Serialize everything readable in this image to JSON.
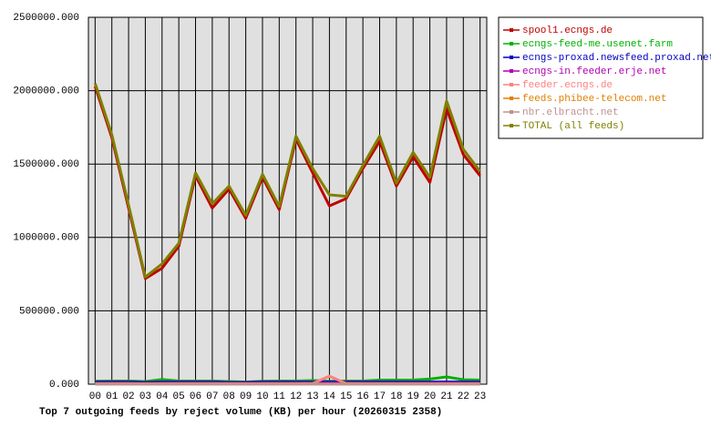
{
  "chart_data": {
    "type": "line",
    "title": "Top 7 outgoing feeds by reject volume (KB) per hour (20260315 2358)",
    "categories": [
      "00",
      "01",
      "02",
      "03",
      "04",
      "05",
      "06",
      "07",
      "08",
      "09",
      "10",
      "11",
      "12",
      "13",
      "14",
      "15",
      "16",
      "17",
      "18",
      "19",
      "20",
      "21",
      "22",
      "23"
    ],
    "ylim": [
      0,
      2500000
    ],
    "yticks": [
      {
        "value": 0,
        "label": "0.000"
      },
      {
        "value": 500000,
        "label": "500000.000"
      },
      {
        "value": 1000000,
        "label": "1000000.000"
      },
      {
        "value": 1500000,
        "label": "1500000.000"
      },
      {
        "value": 2000000,
        "label": "2000000.000"
      },
      {
        "value": 2500000,
        "label": "2500000.000"
      }
    ],
    "grid": true,
    "legend": "right",
    "series": [
      {
        "name": "spool1.ecngs.de",
        "color": "#c00000",
        "values": [
          2030000,
          1680000,
          1200000,
          720000,
          790000,
          940000,
          1420000,
          1200000,
          1330000,
          1130000,
          1410000,
          1190000,
          1670000,
          1440000,
          1215000,
          1265000,
          1470000,
          1655000,
          1350000,
          1550000,
          1375000,
          1875000,
          1565000,
          1420000
        ]
      },
      {
        "name": "ecngs-feed-me.usenet.farm",
        "color": "#00b000",
        "values": [
          20000,
          22000,
          22000,
          18000,
          32000,
          22000,
          22000,
          22000,
          18000,
          15000,
          20000,
          22000,
          22000,
          25000,
          20000,
          22000,
          22000,
          28000,
          28000,
          28000,
          35000,
          50000,
          30000,
          28000
        ]
      },
      {
        "name": "ecngs-proxad.newsfeed.proxad.net",
        "color": "#0000c0",
        "values": [
          15000,
          15000,
          15000,
          12000,
          15000,
          15000,
          15000,
          15000,
          12000,
          12000,
          15000,
          15000,
          15000,
          15000,
          15000,
          15000,
          15000,
          15000,
          15000,
          15000,
          15000,
          15000,
          15000,
          15000
        ]
      },
      {
        "name": "ecngs-in.feeder.erje.net",
        "color": "#b000b0",
        "values": [
          8000,
          8000,
          8000,
          6000,
          8000,
          8000,
          8000,
          8000,
          8000,
          8000,
          8000,
          8000,
          8000,
          8000,
          8000,
          8000,
          8000,
          8000,
          8000,
          8000,
          8000,
          8000,
          8000,
          8000
        ]
      },
      {
        "name": "feeder.ecngs.de",
        "color": "#ff8080",
        "values": [
          3000,
          3000,
          3000,
          3000,
          3000,
          3000,
          3000,
          3000,
          3000,
          3000,
          3000,
          3000,
          3000,
          5000,
          55000,
          5000,
          3000,
          3000,
          3000,
          3000,
          3000,
          3000,
          3000,
          3000
        ]
      },
      {
        "name": "feeds.phibee-telecom.net",
        "color": "#e08000",
        "values": [
          1000,
          1000,
          1000,
          1000,
          1000,
          1000,
          1000,
          1000,
          1000,
          1000,
          1000,
          1000,
          1000,
          1000,
          1000,
          1000,
          1000,
          1000,
          1000,
          1000,
          1000,
          1000,
          1000,
          1000
        ]
      },
      {
        "name": "nbr.elbracht.net",
        "color": "#c09090",
        "values": [
          500,
          500,
          500,
          500,
          500,
          500,
          500,
          500,
          500,
          500,
          500,
          500,
          500,
          500,
          500,
          500,
          500,
          500,
          500,
          500,
          500,
          500,
          500,
          500
        ]
      },
      {
        "name": "TOTAL (all feeds)",
        "color": "#808000",
        "values": [
          2050000,
          1700000,
          1220000,
          730000,
          820000,
          960000,
          1440000,
          1230000,
          1350000,
          1150000,
          1430000,
          1210000,
          1690000,
          1470000,
          1290000,
          1280000,
          1490000,
          1690000,
          1370000,
          1580000,
          1410000,
          1930000,
          1600000,
          1450000
        ]
      }
    ]
  }
}
